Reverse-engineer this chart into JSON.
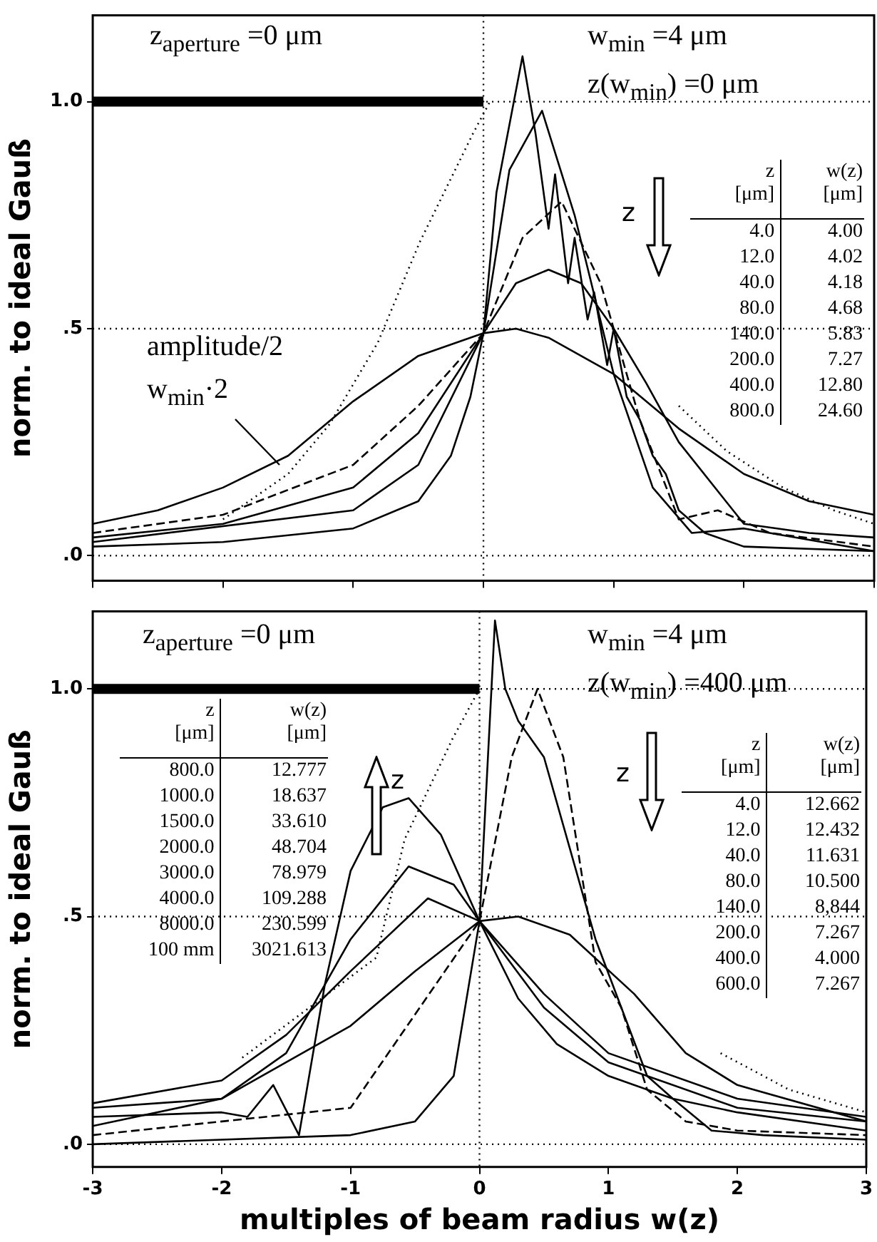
{
  "chart_data": [
    {
      "type": "line",
      "ylabel": "norm. to ideal Gauß",
      "xlim": [
        -3,
        3
      ],
      "ylim": [
        -0.055,
        1.19
      ],
      "xticks": [
        -3,
        -2,
        -1,
        0,
        1,
        2,
        3
      ],
      "yticks": [
        {
          "value": 0,
          "label": ".0"
        },
        {
          "value": 0.5,
          "label": ".5"
        },
        {
          "value": 1,
          "label": "1.0"
        }
      ],
      "tick_labels": "y",
      "grid": false,
      "legend": false,
      "marker": "none",
      "ref_lines": [
        {
          "axis": "y",
          "value": 0,
          "line_style": "dotted"
        },
        {
          "axis": "y",
          "value": 0.5,
          "line_style": "dotted"
        },
        {
          "axis": "y",
          "value": 1,
          "line_style": "dotted"
        },
        {
          "axis": "x",
          "value": 0,
          "line_style": "dotted"
        }
      ],
      "series": [
        {
          "color": "#000000",
          "x": [
            -3,
            0
          ],
          "values": [
            1,
            1
          ]
        },
        {
          "color": "#000000",
          "x": [
            -3,
            -2.5,
            -2,
            -1.5,
            -1,
            -0.5,
            0,
            0.25,
            0.5,
            1,
            1.5,
            2,
            2.5,
            3
          ],
          "values": [
            0.07,
            0.1,
            0.15,
            0.22,
            0.34,
            0.44,
            0.49,
            0.5,
            0.48,
            0.4,
            0.28,
            0.18,
            0.12,
            0.09
          ]
        },
        {
          "color": "#000000",
          "x": [
            -3,
            -2,
            -1,
            -0.5,
            0,
            0.25,
            0.5,
            0.75,
            1,
            1.25,
            1.5,
            2,
            2.5,
            3
          ],
          "values": [
            0.04,
            0.07,
            0.15,
            0.27,
            0.49,
            0.6,
            0.63,
            0.6,
            0.5,
            0.38,
            0.25,
            0.07,
            0.05,
            0.04
          ]
        },
        {
          "color": "#000000",
          "line_style": "dashed",
          "x": [
            -3,
            -2,
            -1,
            -0.5,
            0,
            0.3,
            0.6,
            0.9,
            1.2,
            1.5,
            1.8,
            2.2,
            3
          ],
          "values": [
            0.05,
            0.09,
            0.2,
            0.33,
            0.49,
            0.7,
            0.78,
            0.6,
            0.3,
            0.08,
            0.1,
            0.05,
            0.02
          ]
        },
        {
          "color": "#000000",
          "x": [
            -3,
            -1,
            -0.5,
            0,
            0.2,
            0.45,
            0.7,
            1,
            1.3,
            1.6,
            2,
            3
          ],
          "values": [
            0.03,
            0.1,
            0.2,
            0.49,
            0.85,
            0.98,
            0.75,
            0.4,
            0.15,
            0.05,
            0.06,
            0.01
          ]
        },
        {
          "color": "#000000",
          "x": [
            -3,
            -2,
            -1,
            -0.5,
            -0.25,
            -0.1,
            0,
            0.1,
            0.3,
            0.4,
            0.5,
            0.55,
            0.65,
            0.7,
            0.8,
            0.85,
            0.95,
            1,
            1.1,
            1.2,
            1.3,
            1.4,
            1.5,
            1.7,
            2,
            3
          ],
          "values": [
            0.02,
            0.03,
            0.06,
            0.12,
            0.22,
            0.35,
            0.49,
            0.8,
            1.1,
            0.93,
            0.72,
            0.84,
            0.6,
            0.7,
            0.52,
            0.58,
            0.42,
            0.5,
            0.35,
            0.3,
            0.22,
            0.18,
            0.1,
            0.05,
            0.02,
            0.01
          ]
        },
        {
          "color": "#000000",
          "line_style": "dotted",
          "x": [
            -2,
            -1.5,
            -1.18,
            -0.81,
            -0.49,
            -0.08,
            0.05
          ],
          "values": [
            0.08,
            0.18,
            0.29,
            0.47,
            0.69,
            0.93,
            1.0
          ]
        },
        {
          "color": "#000000",
          "line_style": "dotted",
          "x": [
            1.5,
            1.87,
            2.3,
            2.69,
            3
          ],
          "values": [
            0.33,
            0.23,
            0.15,
            0.1,
            0.07
          ]
        }
      ],
      "annotations": [
        "z$_{aperture}$ =0 μm",
        "w$_{min}$ =4 μm",
        "z(w$_{min}$) =0 μm",
        "amplitude/2",
        "w$_{min}$·2",
        "z",
        "z",
        "[μm]",
        "w(z)",
        "[μm]",
        "4.0",
        "4.00",
        "12.0",
        "4.02",
        "40.0",
        "4.18",
        "80.0",
        "4.68",
        "140.0",
        "5.83",
        "200.0",
        "7.27",
        "400.0",
        "12.80",
        "800.0",
        "24.60"
      ]
    },
    {
      "type": "line",
      "xlabel": "multiples of beam radius w(z)",
      "ylabel": "norm. to ideal Gauß",
      "xlim": [
        -3,
        3
      ],
      "ylim": [
        -0.05,
        1.17
      ],
      "xticks": [
        -3,
        -2,
        -1,
        0,
        1,
        2,
        3
      ],
      "yticks": [
        {
          "value": 0,
          "label": ".0"
        },
        {
          "value": 0.5,
          "label": ".5"
        },
        {
          "value": 1,
          "label": "1.0"
        }
      ],
      "grid": false,
      "legend": false,
      "marker": "none",
      "ref_lines": [
        {
          "axis": "y",
          "value": 0,
          "line_style": "dotted"
        },
        {
          "axis": "y",
          "value": 0.5,
          "line_style": "dotted"
        },
        {
          "axis": "y",
          "value": 1,
          "line_style": "dotted"
        },
        {
          "axis": "x",
          "value": 0,
          "line_style": "dotted"
        }
      ],
      "series": [
        {
          "color": "#000000",
          "x": [
            -3,
            0
          ],
          "values": [
            1,
            1
          ]
        },
        {
          "color": "#000000",
          "x": [
            -3,
            -2,
            -1.8,
            -1.6,
            -1.4,
            -1.2,
            -1,
            -0.75,
            -0.55,
            -0.3,
            0,
            0.3,
            0.6,
            1,
            1.5,
            2,
            3
          ],
          "values": [
            0.06,
            0.07,
            0.06,
            0.13,
            0.02,
            0.35,
            0.6,
            0.74,
            0.76,
            0.68,
            0.49,
            0.32,
            0.22,
            0.15,
            0.1,
            0.07,
            0.03
          ]
        },
        {
          "color": "#000000",
          "x": [
            -3,
            -2,
            -1.5,
            -1,
            -0.55,
            -0.2,
            0,
            0.5,
            1,
            2,
            3
          ],
          "values": [
            0.08,
            0.1,
            0.2,
            0.45,
            0.61,
            0.57,
            0.49,
            0.3,
            0.18,
            0.08,
            0.05
          ]
        },
        {
          "color": "#000000",
          "x": [
            -3,
            -2,
            -1.5,
            -1,
            -0.4,
            0,
            0.5,
            1,
            2,
            3
          ],
          "values": [
            0.09,
            0.14,
            0.24,
            0.38,
            0.54,
            0.49,
            0.33,
            0.2,
            0.1,
            0.06
          ]
        },
        {
          "color": "#000000",
          "x": [
            -3,
            -2,
            -1,
            -0.5,
            0,
            0.3,
            0.7,
            1.2,
            1.6,
            2,
            3
          ],
          "values": [
            0.04,
            0.1,
            0.26,
            0.38,
            0.49,
            0.5,
            0.46,
            0.33,
            0.2,
            0.13,
            0.05
          ]
        },
        {
          "color": "#000000",
          "x": [
            -3,
            -1,
            -0.5,
            -0.2,
            0,
            0.12,
            0.2,
            0.3,
            0.5,
            0.7,
            0.9,
            1.1,
            1.3,
            1.5,
            1.8,
            2.2,
            3
          ],
          "values": [
            0,
            0.02,
            0.05,
            0.15,
            0.49,
            1.15,
            1.0,
            0.93,
            0.85,
            0.65,
            0.45,
            0.3,
            0.15,
            0.1,
            0.03,
            0.02,
            0.01
          ]
        },
        {
          "color": "#000000",
          "line_style": "dashed",
          "x": [
            -3,
            -1,
            0,
            0.25,
            0.45,
            0.65,
            0.9,
            1.1,
            1.3,
            1.6,
            2,
            3
          ],
          "values": [
            0.02,
            0.08,
            0.49,
            0.85,
            1.0,
            0.85,
            0.4,
            0.3,
            0.12,
            0.05,
            0.03,
            0.02
          ]
        },
        {
          "color": "#000000",
          "line_style": "dotted",
          "x": [
            -1.84,
            -0.8,
            -0.58,
            -0.21,
            0
          ],
          "values": [
            0.19,
            0.41,
            0.67,
            0.89,
            1.0
          ]
        },
        {
          "color": "#000000",
          "line_style": "dotted",
          "x": [
            1.87,
            2.4,
            3
          ],
          "values": [
            0.2,
            0.12,
            0.07
          ]
        }
      ],
      "annotations": [
        "z$_{aperture}$ =0 μm",
        "w$_{min}$ =4 μm",
        "z(w$_{min}$) =400 μm",
        "z",
        "z",
        "z",
        "[μm]",
        "w(z)",
        "[μm]",
        "800.0",
        "12.777",
        "1000.0",
        "18.637",
        "1500.0",
        "33.610",
        "2000.0",
        "48.704",
        "3000.0",
        "78.979",
        "4000.0",
        "109.288",
        "8000.0",
        "230.599",
        "100 mm",
        "3021.613",
        "z",
        "[μm]",
        "w(z)",
        "[μm]",
        "4.0",
        "12.662",
        "12.0",
        "12.432",
        "40.0",
        "11.631",
        "80.0",
        "10.500",
        "140.0",
        "8,844",
        "200.0",
        "7.267",
        "400.0",
        "4.000",
        "600.0",
        "7.267"
      ]
    }
  ]
}
